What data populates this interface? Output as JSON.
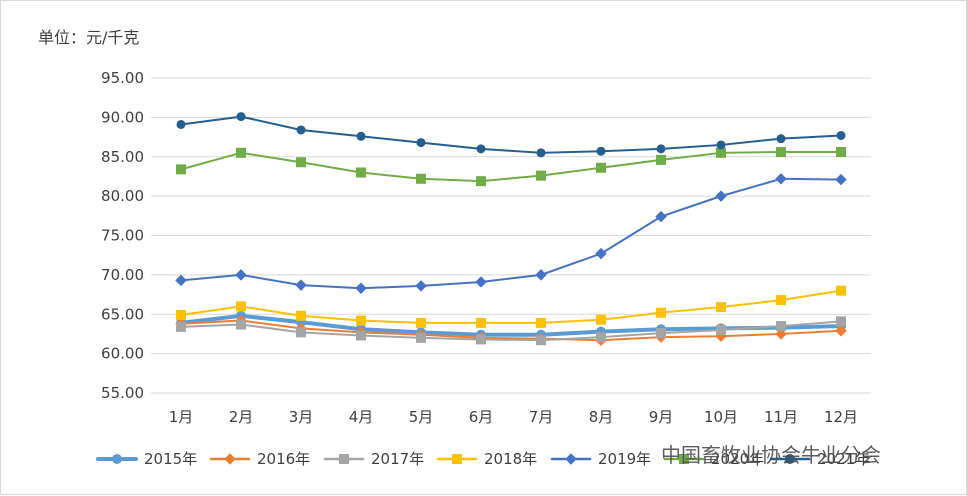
{
  "chart_data": {
    "type": "line",
    "unit_label": "单位：元/千克",
    "categories": [
      "1月",
      "2月",
      "3月",
      "4月",
      "5月",
      "6月",
      "7月",
      "8月",
      "9月",
      "10月",
      "11月",
      "12月"
    ],
    "ylim": [
      55,
      95
    ],
    "yticks": [
      "55.00",
      "60.00",
      "65.00",
      "70.00",
      "75.00",
      "80.00",
      "85.00",
      "90.00",
      "95.00"
    ],
    "ytick_values": [
      55,
      60,
      65,
      70,
      75,
      80,
      85,
      90,
      95
    ],
    "grid": true,
    "legend_position": "bottom",
    "series": [
      {
        "name": "2015年",
        "color": "#5B9BD5",
        "marker": "circle",
        "line_width": 4,
        "values": [
          63.9,
          64.8,
          64.0,
          63.1,
          62.7,
          62.4,
          62.4,
          62.8,
          63.1,
          63.2,
          63.3,
          63.5
        ]
      },
      {
        "name": "2016年",
        "color": "#ED7D31",
        "marker": "diamond",
        "line_width": 2,
        "values": [
          63.8,
          64.2,
          63.2,
          62.7,
          62.4,
          62.0,
          61.9,
          61.7,
          62.1,
          62.2,
          62.5,
          62.9
        ]
      },
      {
        "name": "2017年",
        "color": "#A5A5A5",
        "marker": "square",
        "line_width": 2,
        "values": [
          63.4,
          63.7,
          62.7,
          62.3,
          62.0,
          61.8,
          61.7,
          62.1,
          62.6,
          63.0,
          63.5,
          64.1
        ]
      },
      {
        "name": "2018年",
        "color": "#FFC000",
        "marker": "square",
        "line_width": 2,
        "values": [
          64.9,
          66.0,
          64.8,
          64.2,
          63.9,
          63.9,
          63.9,
          64.3,
          65.2,
          65.9,
          66.8,
          68.0
        ]
      },
      {
        "name": "2019年",
        "color": "#4472C4",
        "marker": "diamond",
        "line_width": 2,
        "values": [
          69.3,
          70.0,
          68.7,
          68.3,
          68.6,
          69.1,
          70.0,
          72.7,
          77.4,
          80.0,
          82.2,
          82.1
        ]
      },
      {
        "name": "2020年",
        "color": "#70AD47",
        "marker": "square",
        "line_width": 2,
        "values": [
          83.4,
          85.5,
          84.3,
          83.0,
          82.2,
          81.9,
          82.6,
          83.6,
          84.6,
          85.5,
          85.6,
          85.6
        ]
      },
      {
        "name": "2021年",
        "color": "#255E91",
        "marker": "circle",
        "line_width": 2,
        "values": [
          89.1,
          90.1,
          88.4,
          87.6,
          86.8,
          86.0,
          85.5,
          85.7,
          86.0,
          86.5,
          87.3,
          87.7
        ]
      }
    ]
  },
  "watermark": {
    "text": "中国畜牧业协会牛业分会"
  }
}
